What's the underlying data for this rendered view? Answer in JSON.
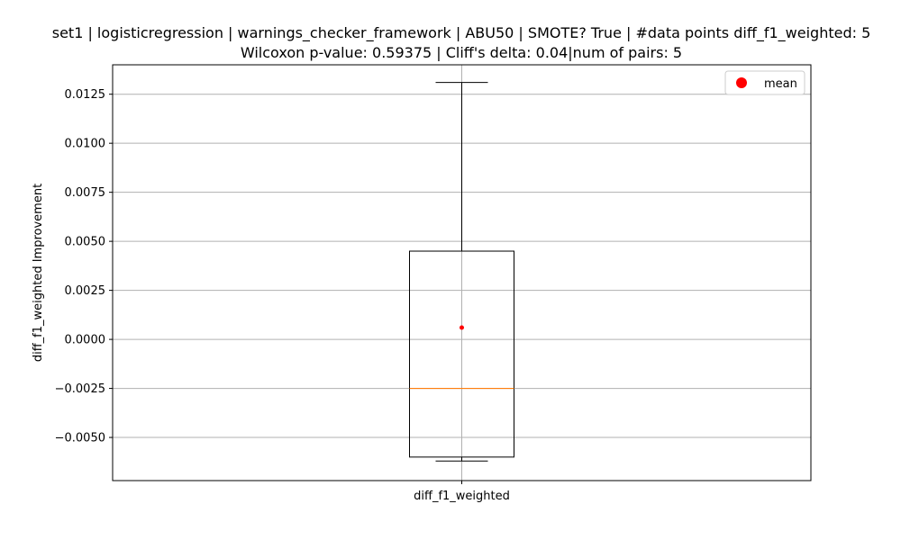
{
  "chart_data": {
    "type": "box",
    "title_line1": "set1 | logisticregression | warnings_checker_framework | ABU50 | SMOTE? True | #data points diff_f1_weighted: 5",
    "title_line2": "Wilcoxon p-value: 0.59375 | Cliff's delta: 0.04|num of pairs: 5",
    "xlabel": "",
    "ylabel": "diff_f1_weighted Improvement",
    "categories": [
      "diff_f1_weighted"
    ],
    "ylim": [
      -0.0072,
      0.014
    ],
    "yticks": [
      -0.005,
      -0.0025,
      0.0,
      0.0025,
      0.005,
      0.0075,
      0.01,
      0.0125
    ],
    "ytick_labels": [
      "−0.0050",
      "−0.0025",
      "0.0000",
      "0.0025",
      "0.0050",
      "0.0075",
      "0.0100",
      "0.0125"
    ],
    "grid": true,
    "legend": {
      "position": "top-right",
      "entries": [
        {
          "label": "mean",
          "color": "#ff0000",
          "marker": "circle"
        }
      ]
    },
    "boxes": [
      {
        "category": "diff_f1_weighted",
        "whisker_low": -0.0062,
        "q1": -0.006,
        "median": -0.0025,
        "q3": 0.0045,
        "whisker_high": 0.0131,
        "mean": 0.0006
      }
    ],
    "colors": {
      "box": "#000000",
      "median": "#ff7f0e",
      "mean": "#ff0000",
      "grid": "#b0b0b0"
    }
  }
}
